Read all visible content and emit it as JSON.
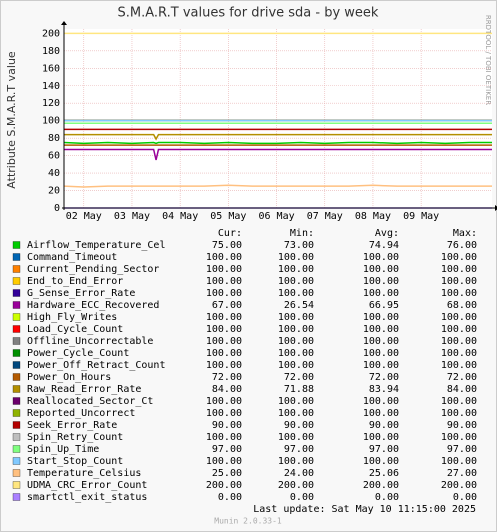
{
  "chart_data": {
    "type": "line",
    "title": "S.M.A.R.T values for drive sda - by week",
    "y_label": "Attribute S.M.A.R.T value",
    "side_label": "RRDTOOL / TOBI OETIKER",
    "footer": "Last update:  Sat May 10 11:15:00 2025",
    "version": "Munin 2.0.33-1",
    "stat_headers": [
      "Cur:",
      "Min:",
      "Avg:",
      "Max:"
    ],
    "xlim": [
      1.59,
      10.47
    ],
    "xticks": [
      {
        "value": 2,
        "label": "02 May"
      },
      {
        "value": 3,
        "label": "03 May"
      },
      {
        "value": 4,
        "label": "04 May"
      },
      {
        "value": 5,
        "label": "05 May"
      },
      {
        "value": 6,
        "label": "06 May"
      },
      {
        "value": 7,
        "label": "07 May"
      },
      {
        "value": 8,
        "label": "08 May"
      },
      {
        "value": 9,
        "label": "09 May"
      }
    ],
    "ylim": [
      0,
      205
    ],
    "yticks": [
      0,
      20,
      40,
      60,
      80,
      100,
      120,
      140,
      160,
      180,
      200
    ],
    "grid": true,
    "x": [
      1.59,
      2,
      2.5,
      3,
      3.45,
      3.5,
      3.55,
      4,
      4.5,
      5,
      5.5,
      6,
      6.5,
      7,
      7.5,
      8,
      8.5,
      9,
      9.5,
      10,
      10.47
    ],
    "series": [
      {
        "name": "Airflow_Temperature_Cel",
        "color": "#00cc00",
        "stats": [
          "75.00",
          "73.00",
          "74.94",
          "76.00"
        ],
        "values": [
          75,
          74,
          75,
          74,
          75,
          74,
          75,
          75,
          74,
          75,
          74,
          74,
          75,
          74,
          75,
          75,
          74,
          75,
          74,
          75,
          75
        ]
      },
      {
        "name": "Command_Timeout",
        "color": "#0066b3",
        "stats": [
          "100.00",
          "100.00",
          "100.00",
          "100.00"
        ],
        "values": [
          100,
          100,
          100,
          100,
          100,
          100,
          100,
          100,
          100,
          100,
          100,
          100,
          100,
          100,
          100,
          100,
          100,
          100,
          100,
          100,
          100
        ]
      },
      {
        "name": "Current_Pending_Sector",
        "color": "#ff8000",
        "stats": [
          "100.00",
          "100.00",
          "100.00",
          "100.00"
        ],
        "values": [
          100,
          100,
          100,
          100,
          100,
          100,
          100,
          100,
          100,
          100,
          100,
          100,
          100,
          100,
          100,
          100,
          100,
          100,
          100,
          100,
          100
        ]
      },
      {
        "name": "End_to_End_Error",
        "color": "#ffcc00",
        "stats": [
          "100.00",
          "100.00",
          "100.00",
          "100.00"
        ],
        "values": [
          100,
          100,
          100,
          100,
          100,
          100,
          100,
          100,
          100,
          100,
          100,
          100,
          100,
          100,
          100,
          100,
          100,
          100,
          100,
          100,
          100
        ]
      },
      {
        "name": "G_Sense_Error_Rate",
        "color": "#330099",
        "stats": [
          "100.00",
          "100.00",
          "100.00",
          "100.00"
        ],
        "values": [
          100,
          100,
          100,
          100,
          100,
          100,
          100,
          100,
          100,
          100,
          100,
          100,
          100,
          100,
          100,
          100,
          100,
          100,
          100,
          100,
          100
        ]
      },
      {
        "name": "Hardware_ECC_Recovered",
        "color": "#990099",
        "stats": [
          "67.00",
          "26.54",
          "66.95",
          "68.00"
        ],
        "values": [
          67,
          67,
          67,
          67,
          67,
          55,
          67,
          67,
          67,
          67,
          67,
          67,
          67,
          67,
          67,
          67,
          67,
          67,
          67,
          67,
          67
        ]
      },
      {
        "name": "High_Fly_Writes",
        "color": "#ccff00",
        "stats": [
          "100.00",
          "100.00",
          "100.00",
          "100.00"
        ],
        "values": [
          100,
          100,
          100,
          100,
          100,
          100,
          100,
          100,
          100,
          100,
          100,
          100,
          100,
          100,
          100,
          100,
          100,
          100,
          100,
          100,
          100
        ]
      },
      {
        "name": "Load_Cycle_Count",
        "color": "#ff0000",
        "stats": [
          "100.00",
          "100.00",
          "100.00",
          "100.00"
        ],
        "values": [
          100,
          100,
          100,
          100,
          100,
          100,
          100,
          100,
          100,
          100,
          100,
          100,
          100,
          100,
          100,
          100,
          100,
          100,
          100,
          100,
          100
        ]
      },
      {
        "name": "Offline_Uncorrectable",
        "color": "#808080",
        "stats": [
          "100.00",
          "100.00",
          "100.00",
          "100.00"
        ],
        "values": [
          100,
          100,
          100,
          100,
          100,
          100,
          100,
          100,
          100,
          100,
          100,
          100,
          100,
          100,
          100,
          100,
          100,
          100,
          100,
          100,
          100
        ]
      },
      {
        "name": "Power_Cycle_Count",
        "color": "#008f00",
        "stats": [
          "100.00",
          "100.00",
          "100.00",
          "100.00"
        ],
        "values": [
          100,
          100,
          100,
          100,
          100,
          100,
          100,
          100,
          100,
          100,
          100,
          100,
          100,
          100,
          100,
          100,
          100,
          100,
          100,
          100,
          100
        ]
      },
      {
        "name": "Power_Off_Retract_Count",
        "color": "#00487d",
        "stats": [
          "100.00",
          "100.00",
          "100.00",
          "100.00"
        ],
        "values": [
          100,
          100,
          100,
          100,
          100,
          100,
          100,
          100,
          100,
          100,
          100,
          100,
          100,
          100,
          100,
          100,
          100,
          100,
          100,
          100,
          100
        ]
      },
      {
        "name": "Power_On_Hours",
        "color": "#b35a00",
        "stats": [
          "72.00",
          "72.00",
          "72.00",
          "72.00"
        ],
        "values": [
          72,
          72,
          72,
          72,
          72,
          72,
          72,
          72,
          72,
          72,
          72,
          72,
          72,
          72,
          72,
          72,
          72,
          72,
          72,
          72,
          72
        ]
      },
      {
        "name": "Raw_Read_Error_Rate",
        "color": "#b38f00",
        "stats": [
          "84.00",
          "71.88",
          "83.94",
          "84.00"
        ],
        "values": [
          84,
          84,
          84,
          84,
          84,
          79,
          84,
          84,
          84,
          84,
          84,
          84,
          84,
          84,
          84,
          84,
          84,
          84,
          84,
          84,
          84
        ]
      },
      {
        "name": "Reallocated_Sector_Ct",
        "color": "#6b006b",
        "stats": [
          "100.00",
          "100.00",
          "100.00",
          "100.00"
        ],
        "values": [
          100,
          100,
          100,
          100,
          100,
          100,
          100,
          100,
          100,
          100,
          100,
          100,
          100,
          100,
          100,
          100,
          100,
          100,
          100,
          100,
          100
        ]
      },
      {
        "name": "Reported_Uncorrect",
        "color": "#8fb300",
        "stats": [
          "100.00",
          "100.00",
          "100.00",
          "100.00"
        ],
        "values": [
          100,
          100,
          100,
          100,
          100,
          100,
          100,
          100,
          100,
          100,
          100,
          100,
          100,
          100,
          100,
          100,
          100,
          100,
          100,
          100,
          100
        ]
      },
      {
        "name": "Seek_Error_Rate",
        "color": "#b30000",
        "stats": [
          "90.00",
          "90.00",
          "90.00",
          "90.00"
        ],
        "values": [
          90,
          90,
          90,
          90,
          90,
          90,
          90,
          90,
          90,
          90,
          90,
          90,
          90,
          90,
          90,
          90,
          90,
          90,
          90,
          90,
          90
        ]
      },
      {
        "name": "Spin_Retry_Count",
        "color": "#bebebe",
        "stats": [
          "100.00",
          "100.00",
          "100.00",
          "100.00"
        ],
        "values": [
          100,
          100,
          100,
          100,
          100,
          100,
          100,
          100,
          100,
          100,
          100,
          100,
          100,
          100,
          100,
          100,
          100,
          100,
          100,
          100,
          100
        ]
      },
      {
        "name": "Spin_Up_Time",
        "color": "#80ff80",
        "stats": [
          "97.00",
          "97.00",
          "97.00",
          "97.00"
        ],
        "values": [
          97,
          97,
          97,
          97,
          97,
          97,
          97,
          97,
          97,
          97,
          97,
          97,
          97,
          97,
          97,
          97,
          97,
          97,
          97,
          97,
          97
        ]
      },
      {
        "name": "Start_Stop_Count",
        "color": "#80c9ff",
        "stats": [
          "100.00",
          "100.00",
          "100.00",
          "100.00"
        ],
        "values": [
          100,
          100,
          100,
          100,
          100,
          100,
          100,
          100,
          100,
          100,
          100,
          100,
          100,
          100,
          100,
          100,
          100,
          100,
          100,
          100,
          100
        ]
      },
      {
        "name": "Temperature_Celsius",
        "color": "#ffc080",
        "stats": [
          "25.00",
          "24.00",
          "25.06",
          "27.00"
        ],
        "values": [
          25,
          24,
          25,
          25,
          25,
          25,
          25,
          25,
          25,
          26,
          25,
          25,
          25,
          25,
          25,
          26,
          25,
          25,
          25,
          25,
          25
        ]
      },
      {
        "name": "UDMA_CRC_Error_Count",
        "color": "#ffe680",
        "stats": [
          "200.00",
          "200.00",
          "200.00",
          "200.00"
        ],
        "values": [
          200,
          200,
          200,
          200,
          200,
          200,
          200,
          200,
          200,
          200,
          200,
          200,
          200,
          200,
          200,
          200,
          200,
          200,
          200,
          200,
          200
        ]
      },
      {
        "name": "smartctl_exit_status",
        "color": "#aa80ff",
        "stats": [
          "0.00",
          "0.00",
          "0.00",
          "0.00"
        ],
        "values": [
          0,
          0,
          0,
          0,
          0,
          0,
          0,
          0,
          0,
          0,
          0,
          0,
          0,
          0,
          0,
          0,
          0,
          0,
          0,
          0,
          0
        ]
      }
    ]
  }
}
